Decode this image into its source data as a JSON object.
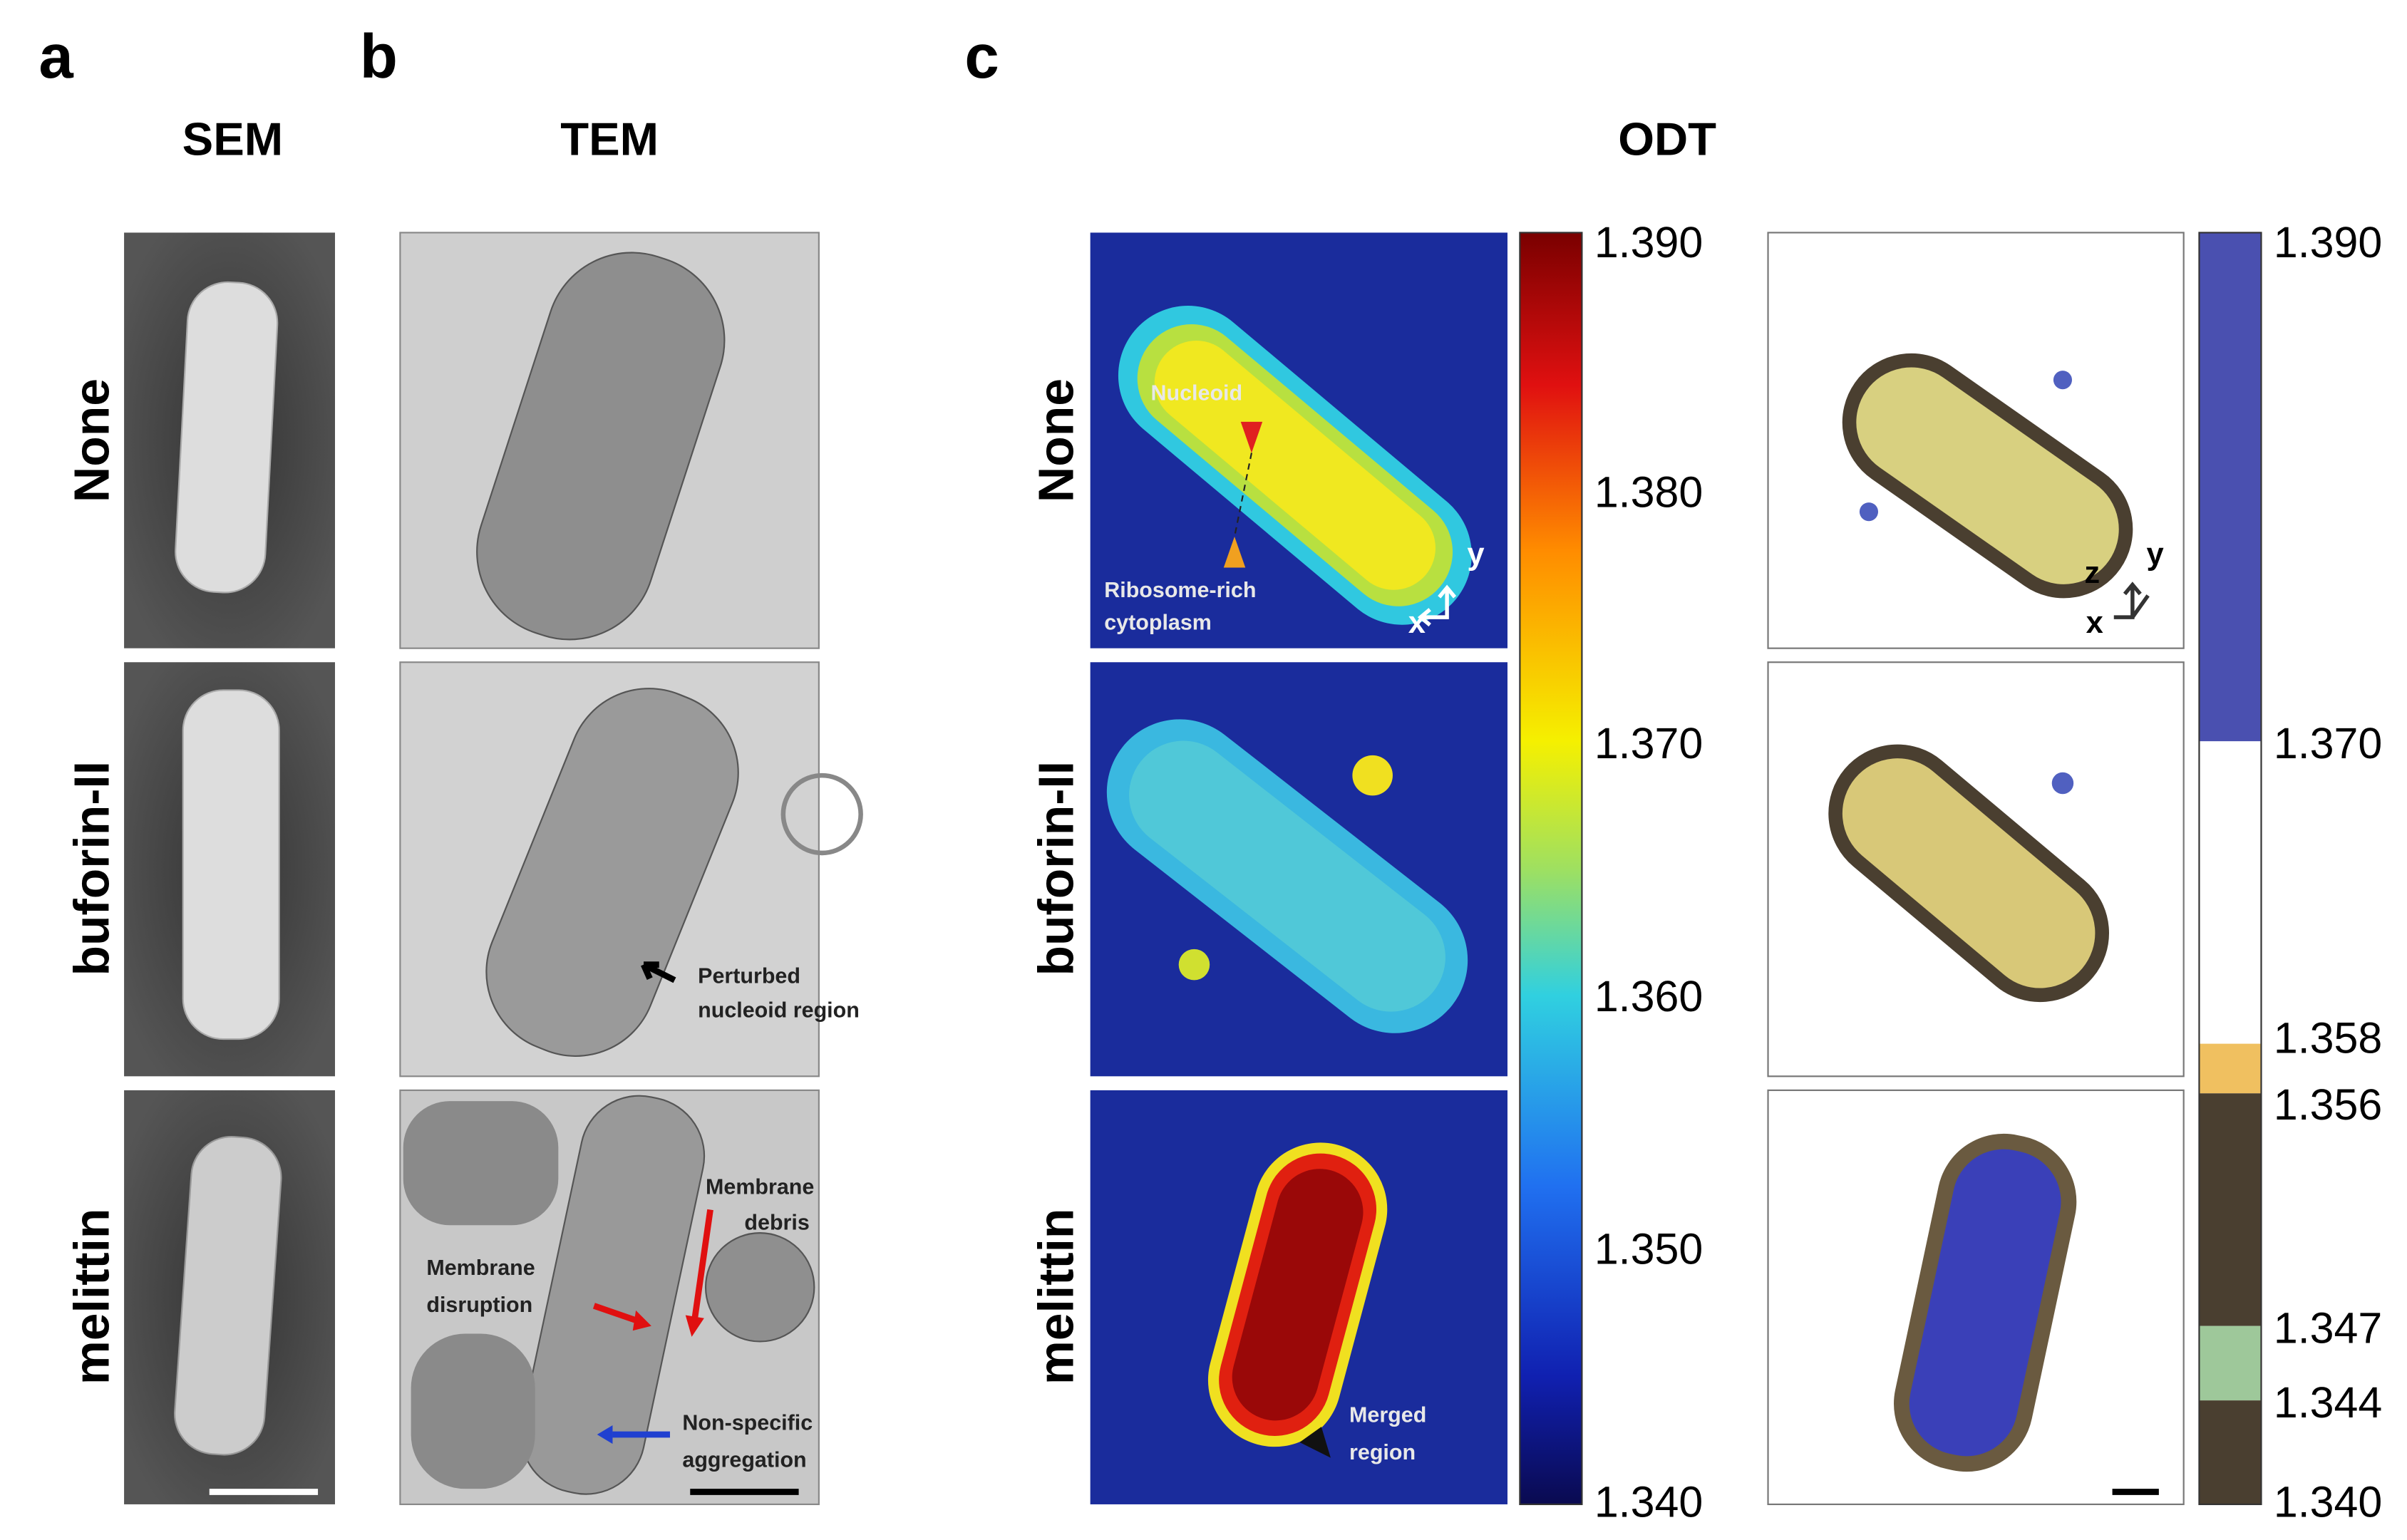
{
  "panel_labels": [
    "a",
    "b",
    "c"
  ],
  "headers": {
    "sem": "SEM",
    "tem": "TEM",
    "odt": "ODT"
  },
  "row_labels": [
    "None",
    "buforin-II",
    "melittin"
  ],
  "annotations": {
    "tem_perturbed": [
      "Perturbed",
      "nucleoid region"
    ],
    "tem_debris": [
      "Membrane",
      "debris"
    ],
    "tem_disruption": [
      "Membrane",
      "disruption"
    ],
    "tem_aggregation": [
      "Non-specific",
      "aggregation"
    ],
    "odt_nucleoid": [
      "Nucleoid"
    ],
    "odt_ribosome": [
      "Ribosome-rich",
      "cytoplasm"
    ],
    "odt_merged": [
      "Merged",
      "region"
    ]
  },
  "axes": {
    "x": "x",
    "y": "y",
    "z": "z"
  },
  "colorbar_ri": {
    "ticks": [
      "1.390",
      "1.380",
      "1.370",
      "1.360",
      "1.350",
      "1.340"
    ]
  },
  "colorbar_render": {
    "ticks": [
      "1.390",
      "1.370",
      "1.358",
      "1.356",
      "1.347",
      "1.344",
      "1.340"
    ]
  }
}
